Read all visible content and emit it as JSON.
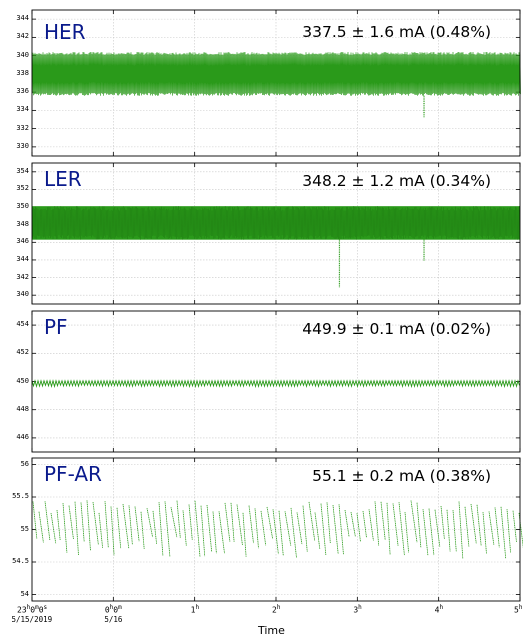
{
  "chart_data": [
    {
      "type": "line",
      "title": "HER",
      "annotation": "337.5 ± 1.6 mA (0.48%)",
      "ylim": [
        329,
        345
      ],
      "yticks": [
        "330",
        "332",
        "334",
        "336",
        "338",
        "340",
        "342",
        "344"
      ],
      "series": [
        {
          "color": "#2a9a1a",
          "pattern": "sawtooth-dense",
          "range_mA": [
            335.6,
            340.4
          ],
          "dips": [
            {
              "t_h": 3.82,
              "min_mA": 333.2
            }
          ]
        }
      ]
    },
    {
      "type": "line",
      "title": "LER",
      "annotation": "348.2 ± 1.2 mA (0.34%)",
      "ylim": [
        339,
        355
      ],
      "yticks": [
        "340",
        "342",
        "344",
        "346",
        "348",
        "350",
        "352",
        "354"
      ],
      "series": [
        {
          "color": "#2a9a1a",
          "pattern": "filled-band",
          "range_mA": [
            346.3,
            350.1
          ],
          "dips": [
            {
              "t_h": 2.78,
              "min_mA": 340.9
            },
            {
              "t_h": 3.82,
              "min_mA": 343.9
            }
          ]
        }
      ]
    },
    {
      "type": "line",
      "title": "PF",
      "annotation": "449.9 ± 0.1 mA (0.02%)",
      "ylim": [
        445,
        455
      ],
      "yticks": [
        "446",
        "448",
        "450",
        "452",
        "454"
      ],
      "series": [
        {
          "color": "#2a9a1a",
          "pattern": "thin-band",
          "range_mA": [
            449.75,
            450.05
          ],
          "dips": []
        }
      ]
    },
    {
      "type": "line",
      "title": "PF-AR",
      "annotation": "55.1 ± 0.2 mA (0.38%)",
      "ylim": [
        53.9,
        56.1
      ],
      "yticks": [
        "54",
        "54.5",
        "55",
        "55.5",
        "56"
      ],
      "series": [
        {
          "color": "#2a9a1a",
          "pattern": "injection-sawtooth",
          "top_mA": 55.45,
          "bottom_mA": 54.55,
          "dips": []
        }
      ]
    }
  ],
  "x_axis": {
    "xlim_h": [
      -1,
      5
    ],
    "ticks": [
      {
        "h": -1,
        "label": "23",
        "sup": "h",
        "extra": "0",
        "extra_sup": "m",
        "extra2": "0",
        "extra2_sup": "s",
        "date": "5/15/2019"
      },
      {
        "h": 0,
        "label": "0",
        "sup": "h",
        "extra": "0",
        "extra_sup": "m",
        "date": "5/16"
      },
      {
        "h": 1,
        "label": "1",
        "sup": "h"
      },
      {
        "h": 2,
        "label": "2",
        "sup": "h"
      },
      {
        "h": 3,
        "label": "3",
        "sup": "h"
      },
      {
        "h": 4,
        "label": "4",
        "sup": "h"
      },
      {
        "h": 5,
        "label": "5",
        "sup": "h"
      }
    ],
    "label": "Time"
  }
}
